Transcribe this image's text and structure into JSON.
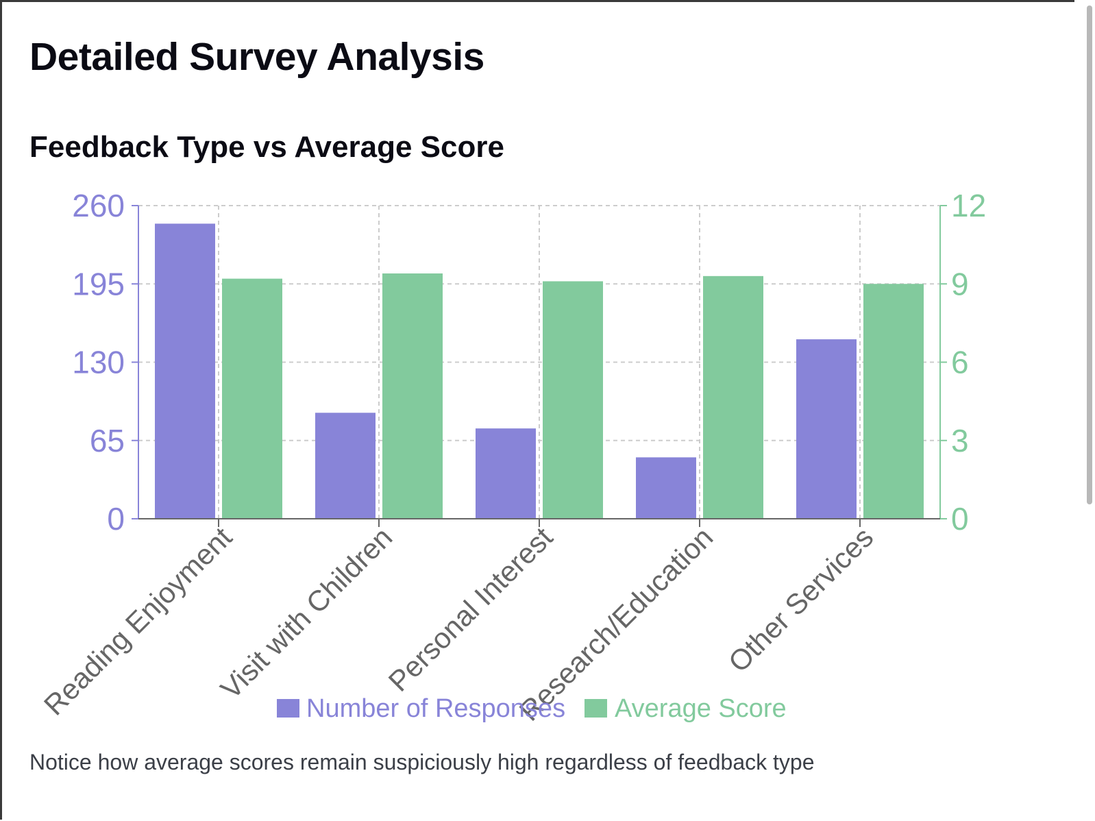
{
  "page_title": "Detailed Survey Analysis",
  "note": "Notice how average scores remain suspiciously high regardless of feedback type",
  "colors": {
    "responses": "#8884d8",
    "score": "#82ca9d",
    "grid": "#cccccc",
    "axis": "#666666"
  },
  "chart_data": {
    "type": "bar",
    "title": "Feedback Type vs Average Score",
    "categories": [
      "Reading Enjoyment",
      "Visit with Children",
      "Personal Interest",
      "Research/Education",
      "Other Services"
    ],
    "series": [
      {
        "name": "Number of Responses",
        "axis": "left",
        "values": [
          245,
          88,
          75,
          51,
          149
        ]
      },
      {
        "name": "Average Score",
        "axis": "right",
        "values": [
          9.2,
          9.4,
          9.1,
          9.3,
          9.0
        ]
      }
    ],
    "y_left": {
      "ticks": [
        "0",
        "65",
        "130",
        "195",
        "260"
      ],
      "range": [
        0,
        260
      ]
    },
    "y_right": {
      "ticks": [
        "0",
        "3",
        "6",
        "9",
        "12"
      ],
      "range": [
        0,
        12
      ]
    },
    "grid": true,
    "legend_position": "bottom-center"
  }
}
